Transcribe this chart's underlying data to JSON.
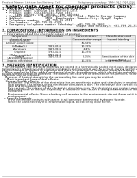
{
  "title": "Safety data sheet for chemical products (SDS)",
  "header_left": "Product Name: Lithium Ion Battery Cell",
  "header_right_line1": "Substance number: 1MH-041-000-016",
  "header_right_line2": "Established / Revision: Dec.1.2016",
  "section1_title": "1. PRODUCT AND COMPANY IDENTIFICATION",
  "section1_lines": [
    "  • Product name: Lithium Ion Battery Cell",
    "  • Product code: Cylindrical-type cell",
    "       (IHR 18650U, IHR 18650L, IHR 18650A)",
    "  • Company name:     Sanyo Electric Co., Ltd., Mobile Energy Company",
    "  • Address:            2001  Kamikosaka, Sumoto-City, Hyogo, Japan",
    "  • Telephone number:   +81-799-26-4111",
    "  • Fax number:   +81-799-26-4129",
    "  • Emergency telephone number (Weekday): +81-799-26-2662",
    "                                         (Night and holiday): +81-799-26-2121"
  ],
  "section2_title": "2. COMPOSITION / INFORMATION ON INGREDIENTS",
  "section2_intro": "  • Substance or preparation: Preparation",
  "section2_sub": "  • Information about the chemical nature of product:",
  "table_headers": [
    "Component\nchemical name",
    "CAS number",
    "Concentration /\nConcentration range",
    "Classification and\nhazard labeling"
  ],
  "table_col2_subheader": "Several names",
  "table_rows": [
    [
      "Lithium cobalt oxide\n(LiMnCoO₂)",
      "-",
      "30-60%",
      ""
    ],
    [
      "Iron",
      "7439-89-6",
      "10-20%",
      "-"
    ],
    [
      "Aluminum",
      "7429-90-5",
      "2-8%",
      "-"
    ],
    [
      "Graphite\n(Flake graphite)\n(Artificial graphite)",
      "7782-42-5\n7782-44-2",
      "10-25%",
      ""
    ],
    [
      "Copper",
      "7440-50-8",
      "5-15%",
      "Sensitization of the skin\ngroup R43.2"
    ],
    [
      "Organic electrolyte",
      "-",
      "10-20%",
      "Inflammable liquid"
    ]
  ],
  "section3_title": "3. HAZARDS IDENTIFICATION",
  "section3_para": [
    "   For the battery cell, chemical materials are stored in a hermetically sealed steel case, designed to withstand",
    "temperatures of battery-under-normal-conditions during normal use. As a result, during normal use, there is no",
    "physical danger of ignition or explosion and there is no danger of hazardous materials leakage.",
    "   When exposed to a fire, added mechanical shocks, decompresses, which electrolyte materials may be used.",
    "By gas release cannot be operated. The battery cell case will be breached or fire-particles, hazardous",
    "materials may be released.",
    "   Moreover, if heated strongly by the surrounding fire, acid gas may be emitted."
  ],
  "section3_bullet1": "  • Most important hazard and effects:",
  "section3_human": "    Human health effects:",
  "section3_sub_lines": [
    "       Inhalation: The release of the electrolyte has an anesthesia action and stimulates in respiratory tract.",
    "       Skin contact: The release of the electrolyte stimulates a skin. The electrolyte skin contact causes a",
    "       sore and stimulation on the skin.",
    "       Eye contact: The release of the electrolyte stimulates eyes. The electrolyte eye contact causes a sore",
    "       and stimulation on the eye. Especially, a substance that causes a strong inflammation of the eye is",
    "       contained.",
    "",
    "       Environmental effects: Since a battery cell remains in the environment, do not throw out it into the",
    "       environment."
  ],
  "section3_bullet2": "  • Specific hazards:",
  "section3_spec": [
    "       If the electrolyte contacts with water, it will generate detrimental hydrogen fluoride.",
    "       Since the used electrolyte is inflammable liquid, do not bring close to fire."
  ],
  "bg_color": "#ffffff",
  "text_color": "#111111",
  "table_border_color": "#888888",
  "line_color": "#aaaaaa",
  "title_color": "#111111",
  "header_bg": "#e8e8e8"
}
